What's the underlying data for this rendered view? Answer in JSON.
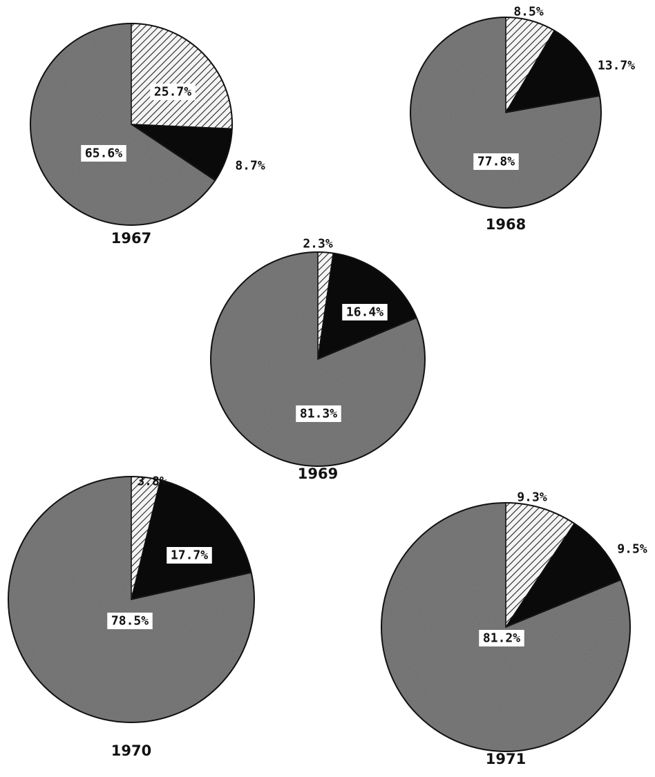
{
  "chart_data": [
    {
      "type": "pie",
      "title": "1967",
      "slices": [
        {
          "value": 25.7,
          "label": "25.7%",
          "pattern": "hatch"
        },
        {
          "value": 8.7,
          "label": "8.7%",
          "pattern": "black"
        },
        {
          "value": 65.6,
          "label": "65.6%",
          "pattern": "gray"
        }
      ]
    },
    {
      "type": "pie",
      "title": "1968",
      "slices": [
        {
          "value": 8.5,
          "label": "8.5%",
          "pattern": "hatch"
        },
        {
          "value": 13.7,
          "label": "13.7%",
          "pattern": "black"
        },
        {
          "value": 77.8,
          "label": "77.8%",
          "pattern": "gray"
        }
      ]
    },
    {
      "type": "pie",
      "title": "1969",
      "slices": [
        {
          "value": 2.3,
          "label": "2.3%",
          "pattern": "hatch"
        },
        {
          "value": 16.4,
          "label": "16.4%",
          "pattern": "black"
        },
        {
          "value": 81.3,
          "label": "81.3%",
          "pattern": "gray"
        }
      ]
    },
    {
      "type": "pie",
      "title": "1970",
      "slices": [
        {
          "value": 3.8,
          "label": "3.8%",
          "pattern": "hatch"
        },
        {
          "value": 17.7,
          "label": "17.7%",
          "pattern": "black"
        },
        {
          "value": 78.5,
          "label": "78.5%",
          "pattern": "gray"
        }
      ]
    },
    {
      "type": "pie",
      "title": "1971",
      "slices": [
        {
          "value": 9.3,
          "label": "9.3%",
          "pattern": "hatch"
        },
        {
          "value": 9.5,
          "label": "9.5%",
          "pattern": "black"
        },
        {
          "value": 81.2,
          "label": "81.2%",
          "pattern": "gray"
        }
      ]
    }
  ],
  "colors": {
    "gray_fill": "#7d7d7d",
    "black_fill": "#0a0a0a",
    "hatch_line": "#222222",
    "hatch_bg": "#f4f4f4",
    "outline": "#111111"
  }
}
